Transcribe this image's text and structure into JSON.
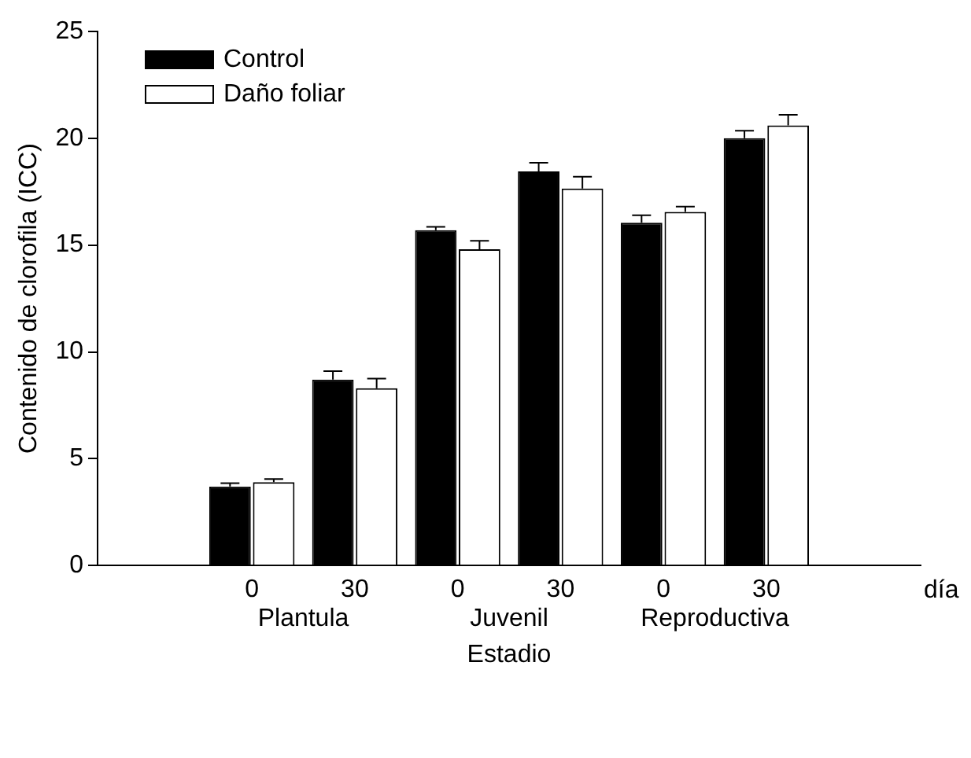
{
  "chart_data": {
    "type": "bar",
    "ylabel": "Contenido de clorofila (ICC)",
    "xlabel": "Estadio",
    "categories": [
      null,
      "0",
      "30",
      "0",
      "30",
      "0",
      "30",
      null
    ],
    "series": [
      {
        "name": "Control",
        "color": "#000000",
        "values": [
          null,
          3.7,
          8.7,
          15.7,
          18.45,
          16.05,
          20.0,
          null
        ],
        "errors": [
          null,
          0.15,
          0.4,
          0.15,
          0.4,
          0.35,
          0.35,
          null
        ]
      },
      {
        "name": "Daño foliar",
        "color": "#ffffff",
        "values": [
          null,
          3.9,
          8.3,
          14.8,
          17.65,
          16.55,
          20.6,
          null
        ],
        "errors": [
          null,
          0.15,
          0.45,
          0.4,
          0.55,
          0.25,
          0.5,
          null
        ]
      }
    ],
    "ylim": [
      0,
      25
    ],
    "yticks": [
      0,
      5,
      10,
      15,
      20,
      25
    ],
    "grid": false,
    "legend": "top left",
    "annotations": [
      "Plantula",
      "Juvenil",
      "Reproductiva",
      "día"
    ]
  }
}
